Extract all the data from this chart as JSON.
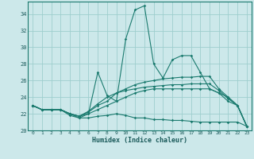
{
  "xlabel": "Humidex (Indice chaleur)",
  "bg_color": "#cce8ea",
  "line_color": "#1a7a6e",
  "grid_color": "#9ecece",
  "xlim": [
    -0.5,
    23.5
  ],
  "ylim": [
    20,
    35.5
  ],
  "yticks": [
    20,
    22,
    24,
    26,
    28,
    30,
    32,
    34
  ],
  "xticks": [
    0,
    1,
    2,
    3,
    4,
    5,
    6,
    7,
    8,
    9,
    10,
    11,
    12,
    13,
    14,
    15,
    16,
    17,
    18,
    19,
    20,
    21,
    22,
    23
  ],
  "series": [
    [
      23.0,
      22.5,
      22.5,
      22.5,
      21.8,
      21.5,
      22.0,
      27.0,
      24.2,
      23.5,
      31.0,
      34.5,
      35.0,
      28.0,
      26.3,
      28.5,
      29.0,
      29.0,
      27.0,
      25.0,
      24.5,
      24.0,
      23.0,
      20.5
    ],
    [
      23.0,
      22.5,
      22.5,
      22.5,
      22.0,
      21.7,
      22.2,
      23.0,
      23.5,
      24.5,
      25.0,
      25.5,
      25.8,
      26.0,
      26.2,
      26.3,
      26.4,
      26.4,
      26.5,
      26.5,
      25.0,
      24.0,
      23.0,
      20.5
    ],
    [
      23.0,
      22.5,
      22.5,
      22.5,
      22.0,
      21.7,
      22.3,
      23.2,
      24.0,
      24.5,
      24.8,
      25.0,
      25.2,
      25.3,
      25.4,
      25.5,
      25.5,
      25.6,
      25.6,
      25.6,
      24.8,
      23.8,
      23.0,
      20.5
    ],
    [
      23.0,
      22.5,
      22.5,
      22.5,
      22.0,
      21.7,
      22.0,
      22.5,
      23.0,
      23.5,
      24.0,
      24.5,
      24.8,
      25.0,
      25.0,
      25.0,
      25.0,
      25.0,
      25.0,
      25.0,
      24.5,
      23.5,
      23.0,
      20.5
    ],
    [
      23.0,
      22.5,
      22.5,
      22.5,
      22.0,
      21.5,
      21.5,
      21.7,
      21.8,
      22.0,
      21.8,
      21.5,
      21.5,
      21.3,
      21.3,
      21.2,
      21.2,
      21.1,
      21.0,
      21.0,
      21.0,
      21.0,
      21.0,
      20.5
    ]
  ]
}
